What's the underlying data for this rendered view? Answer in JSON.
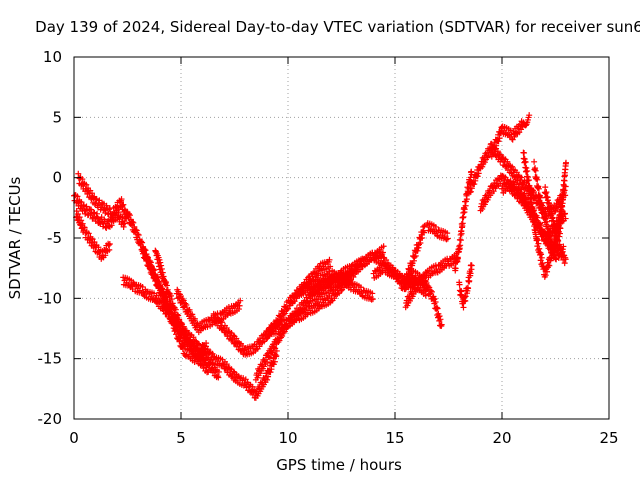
{
  "chart_data": {
    "type": "scatter",
    "title": "Day 139 of 2024, Sidereal Day-to-day VTEC variation (SDTVAR) for receiver sun6",
    "xlabel": "GPS time / hours",
    "ylabel": "SDTVAR / TECUs",
    "xlim": [
      0,
      25
    ],
    "ylim": [
      -20,
      10
    ],
    "xticks": [
      0,
      5,
      10,
      15,
      20,
      25
    ],
    "xtick_labels": [
      "0",
      "5",
      "10",
      "15",
      "20",
      "25"
    ],
    "yticks": [
      -20,
      -15,
      -10,
      -5,
      0,
      5,
      10
    ],
    "ytick_labels": [
      "-20",
      "-15",
      "-10",
      "-5",
      "0",
      "5",
      "10"
    ],
    "grid": true,
    "marker": "+",
    "series_color": "#ff0000",
    "series": [
      {
        "name": "track-1",
        "x": [
          0.0,
          0.4,
          0.8,
          1.2,
          1.6,
          2.0,
          2.4
        ],
        "y": [
          -1.5,
          -2.5,
          -3.0,
          -3.5,
          -4.0,
          -3.0,
          -4.0
        ]
      },
      {
        "name": "track-2",
        "x": [
          0.1,
          0.5,
          0.9,
          1.3,
          1.7
        ],
        "y": [
          -3.0,
          -4.5,
          -5.5,
          -6.5,
          -5.5
        ]
      },
      {
        "name": "track-3",
        "x": [
          0.2,
          0.6,
          1.0,
          1.4,
          1.8,
          2.2,
          2.5
        ],
        "y": [
          0.0,
          -1.0,
          -2.0,
          -2.5,
          -3.0,
          -2.0,
          -3.5
        ]
      },
      {
        "name": "track-4",
        "x": [
          2.3,
          2.8,
          3.3,
          3.8,
          4.3,
          4.8,
          5.3,
          5.8,
          6.3,
          6.8
        ],
        "y": [
          -8.5,
          -9.0,
          -9.5,
          -10.0,
          -11.0,
          -12.0,
          -13.0,
          -14.0,
          -15.5,
          -16.5
        ]
      },
      {
        "name": "track-5",
        "x": [
          2.5,
          3.0,
          3.5,
          4.0,
          4.5,
          5.0,
          5.5,
          6.0
        ],
        "y": [
          -3.0,
          -5.0,
          -7.0,
          -9.0,
          -11.0,
          -13.0,
          -14.0,
          -15.0
        ]
      },
      {
        "name": "track-6",
        "x": [
          3.2,
          3.7,
          4.2,
          4.7,
          5.2,
          5.7,
          6.2
        ],
        "y": [
          -6.0,
          -8.0,
          -10.0,
          -12.5,
          -14.5,
          -15.0,
          -14.0
        ]
      },
      {
        "name": "track-7",
        "x": [
          3.8,
          4.3,
          4.8,
          5.3,
          5.8,
          6.3
        ],
        "y": [
          -6.0,
          -9.0,
          -11.5,
          -13.5,
          -15.0,
          -16.0
        ]
      },
      {
        "name": "track-8",
        "x": [
          4.8,
          5.3,
          5.8,
          6.3,
          6.8,
          7.3,
          7.8
        ],
        "y": [
          -9.5,
          -11.0,
          -12.5,
          -12.0,
          -11.5,
          -11.0,
          -10.5
        ]
      },
      {
        "name": "track-9",
        "x": [
          6.5,
          7.0,
          7.5,
          8.0,
          8.5,
          9.0,
          9.5,
          10.0,
          10.5,
          11.0,
          11.5,
          12.0
        ],
        "y": [
          -11.5,
          -12.5,
          -13.5,
          -14.5,
          -14.0,
          -13.0,
          -12.0,
          -10.5,
          -9.5,
          -8.5,
          -7.5,
          -7.0
        ]
      },
      {
        "name": "track-10",
        "x": [
          6.0,
          6.5,
          7.0,
          7.5,
          8.0,
          8.5,
          9.0,
          9.5
        ],
        "y": [
          -14.0,
          -15.0,
          -15.5,
          -16.5,
          -17.0,
          -18.0,
          -16.5,
          -14.5
        ]
      },
      {
        "name": "track-11",
        "x": [
          8.5,
          9.0,
          9.5,
          10.0,
          10.5,
          11.0,
          11.5,
          12.0,
          12.5,
          13.0
        ],
        "y": [
          -16.5,
          -15.0,
          -13.5,
          -12.0,
          -11.0,
          -10.0,
          -9.5,
          -9.0,
          -8.5,
          -8.0
        ]
      },
      {
        "name": "track-12",
        "x": [
          9.0,
          9.5,
          10.0,
          10.5,
          11.0,
          11.5,
          12.0,
          12.5,
          13.0,
          13.5,
          14.0,
          14.5
        ],
        "y": [
          -13.0,
          -12.5,
          -12.0,
          -11.5,
          -11.0,
          -10.5,
          -10.0,
          -9.0,
          -8.0,
          -7.0,
          -6.5,
          -6.0
        ]
      },
      {
        "name": "track-13",
        "x": [
          10.0,
          10.5,
          11.0,
          11.5,
          12.0,
          12.5,
          13.0,
          13.5,
          14.0
        ],
        "y": [
          -10.5,
          -9.5,
          -9.0,
          -8.5,
          -8.0,
          -8.5,
          -9.0,
          -9.5,
          -10.0
        ]
      },
      {
        "name": "track-14",
        "x": [
          11.0,
          11.5,
          12.0,
          12.5,
          13.0,
          13.5,
          14.0,
          14.5,
          15.0,
          15.5,
          16.0
        ],
        "y": [
          -9.5,
          -9.0,
          -8.5,
          -8.0,
          -7.5,
          -7.0,
          -6.5,
          -7.0,
          -8.0,
          -9.0,
          -8.5
        ]
      },
      {
        "name": "track-15",
        "x": [
          14.0,
          14.5,
          15.0,
          15.5,
          16.0,
          16.5
        ],
        "y": [
          -8.0,
          -7.5,
          -8.0,
          -8.5,
          -9.0,
          -9.5
        ]
      },
      {
        "name": "track-16",
        "x": [
          15.3,
          15.8,
          16.3,
          16.8,
          17.2
        ],
        "y": [
          -9.0,
          -8.0,
          -8.5,
          -10.0,
          -12.5
        ]
      },
      {
        "name": "track-17",
        "x": [
          15.5,
          16.0,
          16.5,
          17.0,
          17.5,
          18.0
        ],
        "y": [
          -10.5,
          -9.0,
          -8.0,
          -7.5,
          -7.0,
          -6.5
        ]
      },
      {
        "name": "track-18",
        "x": [
          15.5,
          15.8,
          16.1,
          16.4
        ],
        "y": [
          -8.5,
          -7.0,
          -5.5,
          -4.0
        ]
      },
      {
        "name": "track-19",
        "x": [
          16.5,
          17.0,
          17.5
        ],
        "y": [
          -4.0,
          -4.5,
          -5.0
        ]
      },
      {
        "name": "track-20",
        "x": [
          17.8,
          18.0,
          18.2,
          18.4,
          18.6
        ],
        "y": [
          -7.5,
          -6.0,
          -3.0,
          -1.0,
          0.5
        ]
      },
      {
        "name": "track-21",
        "x": [
          18.0,
          18.2,
          18.4,
          18.6
        ],
        "y": [
          -9.0,
          -10.5,
          -9.0,
          -7.0
        ]
      },
      {
        "name": "track-22",
        "x": [
          18.5,
          19.0,
          19.5,
          20.0,
          20.5,
          21.0,
          21.5,
          22.0,
          22.5,
          23.0
        ],
        "y": [
          -1.0,
          1.0,
          2.5,
          1.5,
          0.5,
          -0.5,
          -1.5,
          -3.0,
          -2.5,
          -1.0
        ]
      },
      {
        "name": "track-23",
        "x": [
          19.0,
          19.5,
          20.0,
          20.5,
          21.0,
          21.5,
          22.0,
          22.5,
          23.0
        ],
        "y": [
          -2.5,
          -1.0,
          0.0,
          -1.0,
          -2.0,
          -3.5,
          -5.0,
          -4.0,
          -3.0
        ]
      },
      {
        "name": "track-24",
        "x": [
          19.5,
          20.0,
          20.5,
          21.0,
          21.3
        ],
        "y": [
          2.0,
          4.0,
          3.5,
          4.5,
          5.0
        ]
      },
      {
        "name": "track-25",
        "x": [
          20.0,
          20.5,
          21.0,
          21.5,
          22.0,
          22.5,
          22.9
        ],
        "y": [
          -1.0,
          -0.5,
          -1.5,
          -3.0,
          -5.0,
          -6.5,
          -6.0
        ]
      },
      {
        "name": "track-26",
        "x": [
          21.0,
          21.3,
          21.6,
          22.0,
          22.4,
          22.8
        ],
        "y": [
          2.0,
          -1.0,
          -5.0,
          -8.0,
          -6.0,
          -2.0
        ]
      },
      {
        "name": "track-27",
        "x": [
          21.5,
          21.8,
          22.1,
          22.4,
          22.7,
          23.0
        ],
        "y": [
          1.0,
          -2.0,
          -4.0,
          -6.0,
          -4.5,
          1.5
        ]
      },
      {
        "name": "track-28",
        "x": [
          22.0,
          22.3,
          22.6,
          23.0
        ],
        "y": [
          -1.0,
          -3.0,
          -5.5,
          -7.0
        ]
      }
    ]
  }
}
